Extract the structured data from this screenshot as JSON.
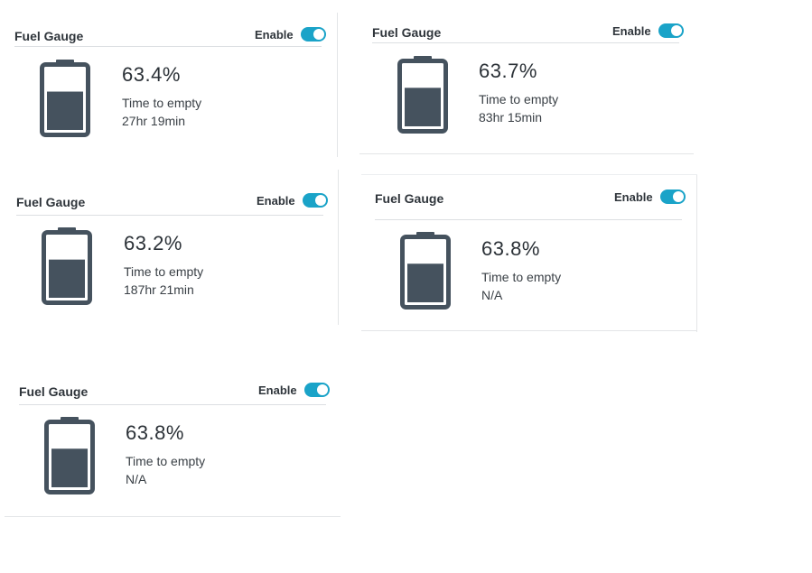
{
  "colors": {
    "toggle_on": "#1aa3c8",
    "battery_dark": "#45525e",
    "divider": "#dcdfe2"
  },
  "cards": [
    {
      "title": "Fuel Gauge",
      "enable_label": "Enable",
      "enabled": true,
      "percent_label": "63.4%",
      "charge_fraction": 0.634,
      "time_to_empty_label": "Time to empty",
      "time_to_empty_value": "27hr 19min",
      "icon": "battery-icon"
    },
    {
      "title": "Fuel Gauge",
      "enable_label": "Enable",
      "enabled": true,
      "percent_label": "63.7%",
      "charge_fraction": 0.637,
      "time_to_empty_label": "Time to empty",
      "time_to_empty_value": "83hr 15min",
      "icon": "battery-icon"
    },
    {
      "title": "Fuel Gauge",
      "enable_label": "Enable",
      "enabled": true,
      "percent_label": "63.2%",
      "charge_fraction": 0.632,
      "time_to_empty_label": "Time to empty",
      "time_to_empty_value": "187hr 21min",
      "icon": "battery-icon"
    },
    {
      "title": "Fuel Gauge",
      "enable_label": "Enable",
      "enabled": true,
      "percent_label": "63.8%",
      "charge_fraction": 0.638,
      "time_to_empty_label": "Time to empty",
      "time_to_empty_value": "N/A",
      "icon": "battery-icon"
    },
    {
      "title": "Fuel Gauge",
      "enable_label": "Enable",
      "enabled": true,
      "percent_label": "63.8%",
      "charge_fraction": 0.638,
      "time_to_empty_label": "Time to empty",
      "time_to_empty_value": "N/A",
      "icon": "battery-icon"
    }
  ]
}
